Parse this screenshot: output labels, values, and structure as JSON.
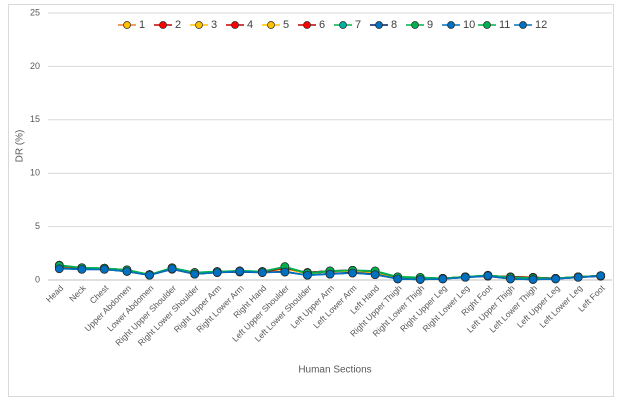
{
  "chart_data": {
    "type": "line",
    "xlabel": "Human Sections",
    "ylabel": "DR (%)",
    "categories": [
      "Head",
      "Neck",
      "Chest",
      "Upper Abdomen",
      "Lower Abdomen",
      "Right Upper Shoulder",
      "Right Lower Shoulder",
      "Right Upper Arm",
      "Right Lower Arm",
      "Right Hand",
      "Left Upper Shoulder",
      "Left Lower Shoulder",
      "Left Upper Arm",
      "Left Lower Arm",
      "Left Hand",
      "Right Upper Thigh",
      "Right Lower Thigh",
      "Right Upper Leg",
      "Right Lower Leg",
      "Right Foot",
      "Left Upper Thigh",
      "Left Lower Thigh",
      "Left Upper Leg",
      "Left Lower Leg",
      "Left Foot"
    ],
    "ylim": [
      0,
      25
    ],
    "yticks": [
      0,
      5,
      10,
      15,
      20,
      25
    ],
    "grid": true,
    "legend": "top",
    "series": [
      {
        "name": "1",
        "color": "#ed7d31",
        "marker_color": "#ffc000",
        "values": [
          1.25,
          1.1,
          1.1,
          0.9,
          0.5,
          1.1,
          0.65,
          0.75,
          0.85,
          0.75,
          1.05,
          0.6,
          0.8,
          0.85,
          0.7,
          0.2,
          0.15,
          0.15,
          0.3,
          0.4,
          0.2,
          0.15,
          0.15,
          0.3,
          0.4
        ]
      },
      {
        "name": "2",
        "color": "#c00000",
        "marker_color": "#ff0000",
        "values": [
          1.3,
          1.1,
          1.1,
          0.9,
          0.5,
          1.1,
          0.65,
          0.75,
          0.8,
          0.75,
          1.1,
          0.7,
          0.85,
          0.9,
          0.8,
          0.25,
          0.2,
          0.15,
          0.3,
          0.4,
          0.3,
          0.25,
          0.15,
          0.3,
          0.4
        ]
      },
      {
        "name": "3",
        "color": "#ffc000",
        "marker_color": "#ffc000",
        "values": [
          1.25,
          1.1,
          1.1,
          0.9,
          0.5,
          1.1,
          0.65,
          0.75,
          0.85,
          0.75,
          1.05,
          0.6,
          0.8,
          0.85,
          0.7,
          0.2,
          0.15,
          0.15,
          0.3,
          0.4,
          0.2,
          0.15,
          0.15,
          0.3,
          0.4
        ]
      },
      {
        "name": "4",
        "color": "#c00000",
        "marker_color": "#ff0000",
        "values": [
          1.3,
          1.1,
          1.1,
          0.9,
          0.5,
          1.1,
          0.65,
          0.75,
          0.8,
          0.75,
          1.1,
          0.7,
          0.85,
          0.9,
          0.8,
          0.25,
          0.2,
          0.15,
          0.3,
          0.4,
          0.3,
          0.25,
          0.15,
          0.3,
          0.4
        ]
      },
      {
        "name": "5",
        "color": "#ffc000",
        "marker_color": "#ffc000",
        "values": [
          1.25,
          1.1,
          1.1,
          0.9,
          0.5,
          1.1,
          0.65,
          0.75,
          0.85,
          0.75,
          1.05,
          0.6,
          0.8,
          0.85,
          0.7,
          0.2,
          0.15,
          0.15,
          0.3,
          0.4,
          0.2,
          0.15,
          0.15,
          0.3,
          0.4
        ]
      },
      {
        "name": "6",
        "color": "#c00000",
        "marker_color": "#ff0000",
        "values": [
          1.3,
          1.1,
          1.1,
          0.9,
          0.5,
          1.1,
          0.65,
          0.75,
          0.8,
          0.75,
          1.1,
          0.7,
          0.85,
          0.9,
          0.8,
          0.25,
          0.2,
          0.15,
          0.3,
          0.4,
          0.3,
          0.25,
          0.15,
          0.3,
          0.4
        ]
      },
      {
        "name": "7",
        "color": "#00b050",
        "marker_color": "#00b0a0",
        "values": [
          1.35,
          1.15,
          1.1,
          0.95,
          0.5,
          1.1,
          0.7,
          0.75,
          0.85,
          0.8,
          1.2,
          0.6,
          0.8,
          0.9,
          0.8,
          0.25,
          0.2,
          0.15,
          0.3,
          0.4,
          0.25,
          0.2,
          0.15,
          0.3,
          0.4
        ]
      },
      {
        "name": "8",
        "color": "#002060",
        "marker_color": "#0070c0",
        "values": [
          1.1,
          1.0,
          1.0,
          0.8,
          0.45,
          1.0,
          0.55,
          0.7,
          0.75,
          0.7,
          0.8,
          0.45,
          0.6,
          0.7,
          0.55,
          0.1,
          0.05,
          0.1,
          0.25,
          0.35,
          0.1,
          0.05,
          0.1,
          0.25,
          0.35
        ]
      },
      {
        "name": "9",
        "color": "#00b050",
        "marker_color": "#00b050",
        "values": [
          1.4,
          1.15,
          1.1,
          0.95,
          0.5,
          1.15,
          0.7,
          0.8,
          0.85,
          0.8,
          1.25,
          0.65,
          0.85,
          0.9,
          0.85,
          0.3,
          0.25,
          0.15,
          0.3,
          0.45,
          0.25,
          0.2,
          0.15,
          0.3,
          0.4
        ]
      },
      {
        "name": "10",
        "color": "#0070c0",
        "marker_color": "#0070c0",
        "values": [
          1.1,
          1.0,
          1.0,
          0.8,
          0.45,
          1.05,
          0.55,
          0.7,
          0.8,
          0.7,
          0.75,
          0.45,
          0.55,
          0.65,
          0.5,
          0.1,
          0.05,
          0.1,
          0.25,
          0.4,
          0.1,
          0.05,
          0.1,
          0.25,
          0.4
        ]
      },
      {
        "name": "11",
        "color": "#00b050",
        "marker_color": "#00b050",
        "values": [
          1.35,
          1.15,
          1.1,
          0.95,
          0.5,
          1.15,
          0.7,
          0.8,
          0.85,
          0.8,
          1.25,
          0.65,
          0.85,
          0.9,
          0.85,
          0.3,
          0.25,
          0.15,
          0.3,
          0.45,
          0.25,
          0.2,
          0.15,
          0.3,
          0.4
        ]
      },
      {
        "name": "12",
        "color": "#0070c0",
        "marker_color": "#0070c0",
        "values": [
          1.05,
          1.0,
          1.0,
          0.8,
          0.45,
          1.05,
          0.55,
          0.7,
          0.8,
          0.7,
          0.75,
          0.45,
          0.55,
          0.65,
          0.5,
          0.1,
          0.05,
          0.1,
          0.25,
          0.4,
          0.1,
          0.05,
          0.1,
          0.25,
          0.4
        ]
      }
    ]
  }
}
